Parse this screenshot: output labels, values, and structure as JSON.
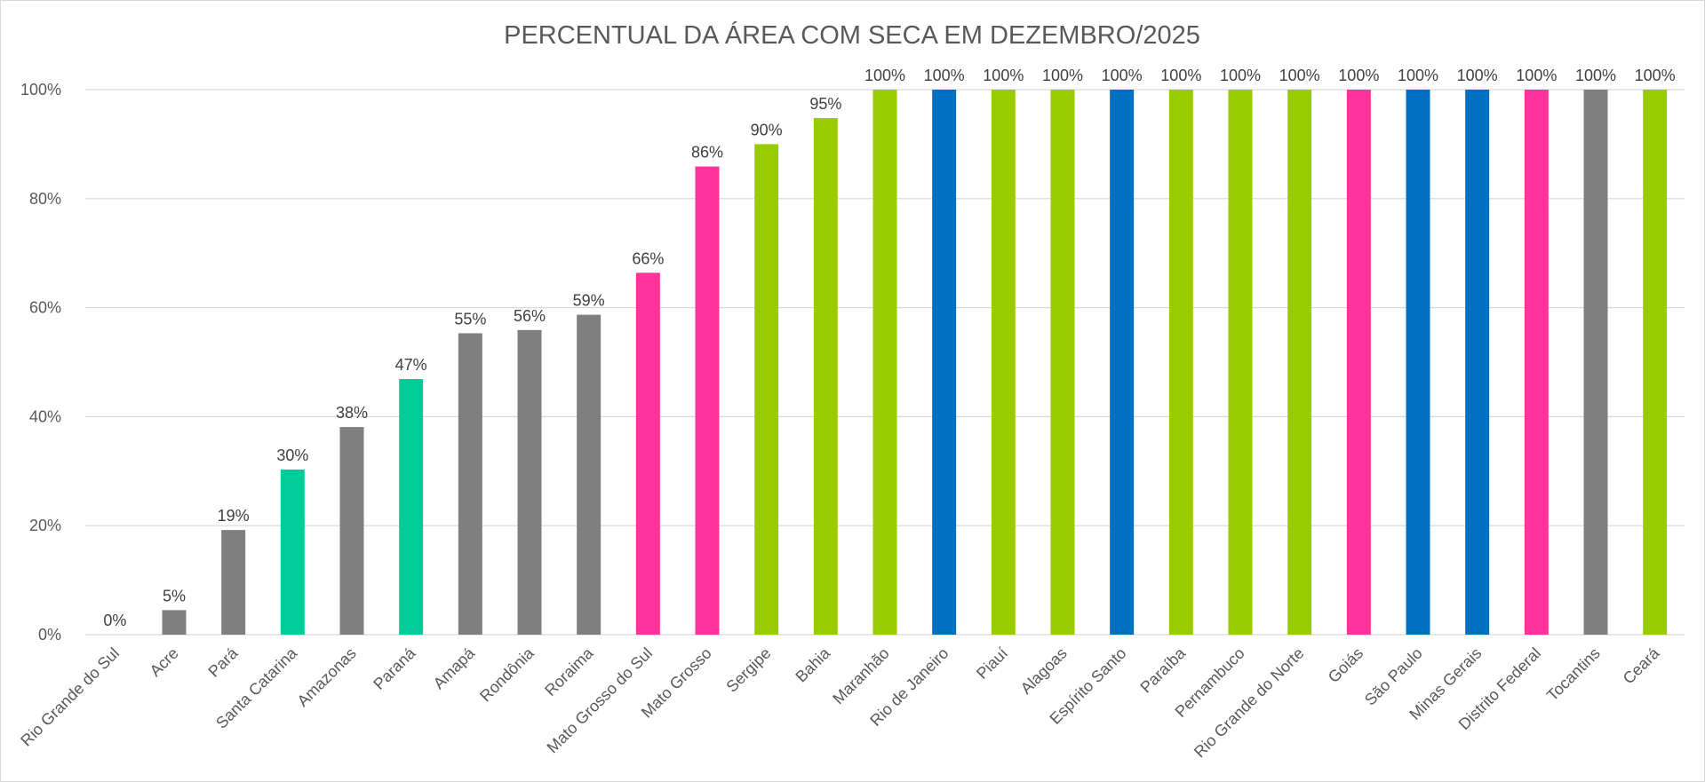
{
  "chart_data": {
    "type": "bar",
    "title": "PERCENTUAL DA ÁREA COM SECA EM DEZEMBRO/2025",
    "xlabel": "",
    "ylabel": "",
    "ylim": [
      0,
      100
    ],
    "yticks": [
      "0%",
      "20%",
      "40%",
      "60%",
      "80%",
      "100%"
    ],
    "grid": true,
    "legend": "none",
    "categories": [
      "Rio Grande do Sul",
      "Acre",
      "Pará",
      "Santa Catarina",
      "Amazonas",
      "Paraná",
      "Amapá",
      "Rondônia",
      "Roraima",
      "Mato Grosso do Sul",
      "Mato Grosso",
      "Sergipe",
      "Bahia",
      "Maranhão",
      "Rio de Janeiro",
      "Piauí",
      "Alagoas",
      "Espírito Santo",
      "Paraíba",
      "Pernambuco",
      "Rio Grande do Norte",
      "Goiás",
      "São Paulo",
      "Minas Gerais",
      "Distrito Federal",
      "Tocantins",
      "Ceará"
    ],
    "values": [
      0,
      4.5,
      19.2,
      30.3,
      38.1,
      46.9,
      55.3,
      55.9,
      58.7,
      66.4,
      85.9,
      90.0,
      94.8,
      100,
      100,
      100,
      100,
      100,
      100,
      100,
      100,
      100,
      100,
      100,
      100,
      100,
      100
    ],
    "value_labels": [
      "0%",
      "5%",
      "19%",
      "30%",
      "38%",
      "47%",
      "55%",
      "56%",
      "59%",
      "66%",
      "86%",
      "90%",
      "95%",
      "100%",
      "100%",
      "100%",
      "100%",
      "100%",
      "100%",
      "100%",
      "100%",
      "100%",
      "100%",
      "100%",
      "100%",
      "100%",
      "100%"
    ],
    "colors": [
      "#7f7f7f",
      "#7f7f7f",
      "#7f7f7f",
      "#00cc99",
      "#7f7f7f",
      "#00cc99",
      "#7f7f7f",
      "#7f7f7f",
      "#7f7f7f",
      "#ff3399",
      "#ff3399",
      "#99cc00",
      "#99cc00",
      "#99cc00",
      "#0070c0",
      "#99cc00",
      "#99cc00",
      "#0070c0",
      "#99cc00",
      "#99cc00",
      "#99cc00",
      "#ff3399",
      "#0070c0",
      "#0070c0",
      "#ff3399",
      "#7f7f7f",
      "#99cc00"
    ]
  }
}
